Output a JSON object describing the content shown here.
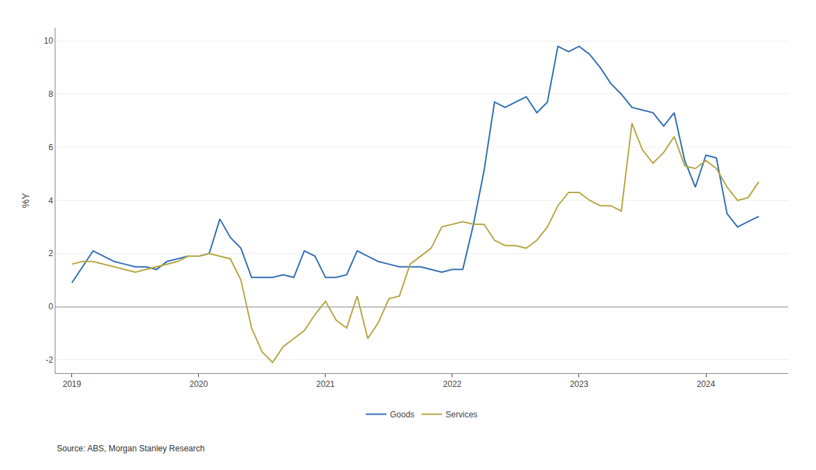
{
  "chart_data": {
    "type": "line",
    "ylabel": "%Y",
    "annotations": [
      "Source: ABS, Morgan Stanley Research"
    ],
    "x": [
      2019.0,
      2019.083,
      2019.167,
      2019.25,
      2019.333,
      2019.417,
      2019.5,
      2019.583,
      2019.667,
      2019.75,
      2019.833,
      2019.917,
      2020.0,
      2020.083,
      2020.167,
      2020.25,
      2020.333,
      2020.417,
      2020.5,
      2020.583,
      2020.667,
      2020.75,
      2020.833,
      2020.917,
      2021.0,
      2021.083,
      2021.167,
      2021.25,
      2021.333,
      2021.417,
      2021.5,
      2021.583,
      2021.667,
      2021.75,
      2021.833,
      2021.917,
      2022.0,
      2022.083,
      2022.167,
      2022.25,
      2022.333,
      2022.417,
      2022.5,
      2022.583,
      2022.667,
      2022.75,
      2022.833,
      2022.917,
      2023.0,
      2023.083,
      2023.167,
      2023.25,
      2023.333,
      2023.417,
      2023.5,
      2023.583,
      2023.667,
      2023.75,
      2023.833,
      2023.917,
      2024.0,
      2024.083,
      2024.167,
      2024.25,
      2024.333,
      2024.417
    ],
    "series": [
      {
        "name": "Goods",
        "color": "#2E6DB4",
        "values": [
          0.9,
          1.5,
          2.1,
          1.9,
          1.7,
          1.6,
          1.5,
          1.5,
          1.4,
          1.7,
          1.8,
          1.9,
          1.9,
          2.0,
          3.3,
          2.6,
          2.2,
          1.1,
          1.1,
          1.1,
          1.2,
          1.1,
          2.1,
          1.9,
          1.1,
          1.1,
          1.2,
          2.1,
          1.9,
          1.7,
          1.6,
          1.5,
          1.5,
          1.5,
          1.4,
          1.3,
          1.4,
          1.4,
          3.1,
          5.1,
          7.7,
          7.5,
          7.7,
          7.9,
          7.3,
          7.7,
          9.8,
          9.6,
          9.8,
          9.5,
          9.0,
          8.4,
          8.0,
          7.5,
          7.4,
          7.3,
          6.8,
          7.3,
          5.5,
          4.5,
          5.7,
          5.6,
          3.5,
          3.0,
          3.2,
          3.4
        ]
      },
      {
        "name": "Services",
        "color": "#B5A642",
        "values": [
          1.6,
          1.7,
          1.7,
          1.6,
          1.5,
          1.4,
          1.3,
          1.4,
          1.5,
          1.6,
          1.7,
          1.9,
          1.9,
          2.0,
          1.9,
          1.8,
          1.0,
          -0.8,
          -1.7,
          -2.1,
          -1.5,
          -1.2,
          -0.9,
          -0.3,
          0.2,
          -0.5,
          -0.8,
          0.4,
          -1.2,
          -0.6,
          0.3,
          0.4,
          1.6,
          1.9,
          2.2,
          3.0,
          3.1,
          3.2,
          3.1,
          3.1,
          2.5,
          2.3,
          2.3,
          2.2,
          2.5,
          3.0,
          3.8,
          4.3,
          4.3,
          4.0,
          3.8,
          3.8,
          3.6,
          6.9,
          5.9,
          5.4,
          5.8,
          6.4,
          5.3,
          5.2,
          5.5,
          5.2,
          4.5,
          4.0,
          4.1,
          4.7
        ]
      }
    ],
    "xlim": [
      2018.87,
      2024.65
    ],
    "xticks": [
      2019,
      2020,
      2021,
      2022,
      2023,
      2024
    ],
    "ylim": [
      -2.5,
      10.5
    ],
    "yticks": [
      -2,
      0,
      2,
      4,
      6,
      8,
      10
    ],
    "grid": "y",
    "legend": "bottom"
  }
}
